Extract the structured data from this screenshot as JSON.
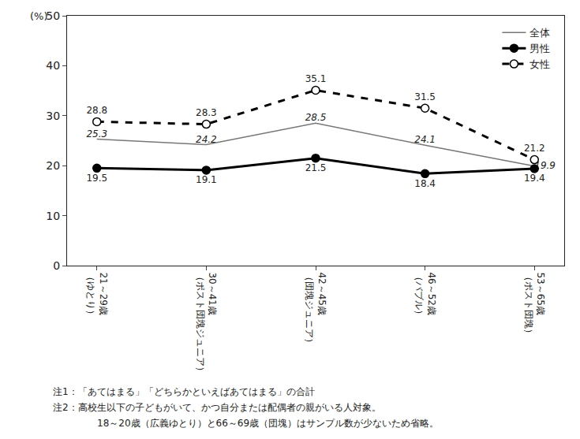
{
  "chart_data": {
    "type": "line",
    "ylabel": "(%)",
    "categories": [
      "21～29歳（ゆとり）",
      "30～41歳（ポスト団塊ジュニア）",
      "42～45歳（団塊ジュニア）",
      "46～52歳（バブル）",
      "53～65歳（ポスト団塊）"
    ],
    "series": [
      {
        "name": "全体",
        "color": "#777777",
        "marker": "none",
        "line_style": "solid",
        "values": [
          25.3,
          24.2,
          28.5,
          24.1,
          19.9
        ]
      },
      {
        "name": "男性",
        "color": "#000000",
        "marker": "circle",
        "line_style": "solid",
        "values": [
          19.5,
          19.1,
          21.5,
          18.4,
          19.4
        ]
      },
      {
        "name": "女性",
        "color": "#000000",
        "marker": "circle-open",
        "line_style": "dashed",
        "values": [
          28.8,
          28.3,
          35.1,
          31.5,
          21.2
        ]
      }
    ],
    "ylim": [
      0,
      50
    ],
    "yticks": [
      0,
      10,
      20,
      30,
      40,
      50
    ],
    "grid": false,
    "legend": "top right",
    "data_labels": true,
    "annotations": [
      "注1：「あてはまる」「どちらかといえばあてはまる」の合計",
      "注2：高校生以下の子どもがいて、かつ自分または配偶者の親がいる人対象。",
      "18～20歳（広義ゆとり）と66～69歳（団塊）はサンプル数が少ないため省略。"
    ]
  }
}
